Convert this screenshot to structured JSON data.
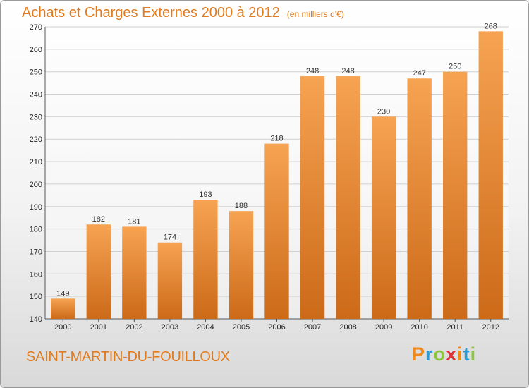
{
  "header": {
    "title": "Achats et Charges Externes 2000 à 2012",
    "subtitle": "(en milliers d'€)"
  },
  "footer": {
    "commune": "SAINT-MARTIN-DU-FOUILLOUX",
    "logo": {
      "text": "Proxiti",
      "letter_colors": [
        "#f08a1c",
        "#2a9ad6",
        "#8cc63f",
        "#e0303a",
        "#f08a1c",
        "#2a9ad6",
        "#8cc63f"
      ]
    }
  },
  "colors": {
    "bar_top": "#f6a352",
    "bar_bottom": "#cc6a18",
    "accent_text": "#e07b1f",
    "grid": "#d0d0d0"
  },
  "chart_data": {
    "type": "bar",
    "title": "Achats et Charges Externes 2000 à 2012",
    "subtitle": "(en milliers d'€)",
    "categories": [
      "2000",
      "2001",
      "2002",
      "2003",
      "2004",
      "2005",
      "2006",
      "2007",
      "2008",
      "2009",
      "2010",
      "2011",
      "2012"
    ],
    "values": [
      149,
      182,
      181,
      174,
      193,
      188,
      218,
      248,
      248,
      230,
      247,
      250,
      268
    ],
    "ylim": [
      140,
      270
    ],
    "yticks": [
      140,
      150,
      160,
      170,
      180,
      190,
      200,
      210,
      220,
      230,
      240,
      250,
      260,
      270
    ],
    "grid": true,
    "data_labels": true
  }
}
